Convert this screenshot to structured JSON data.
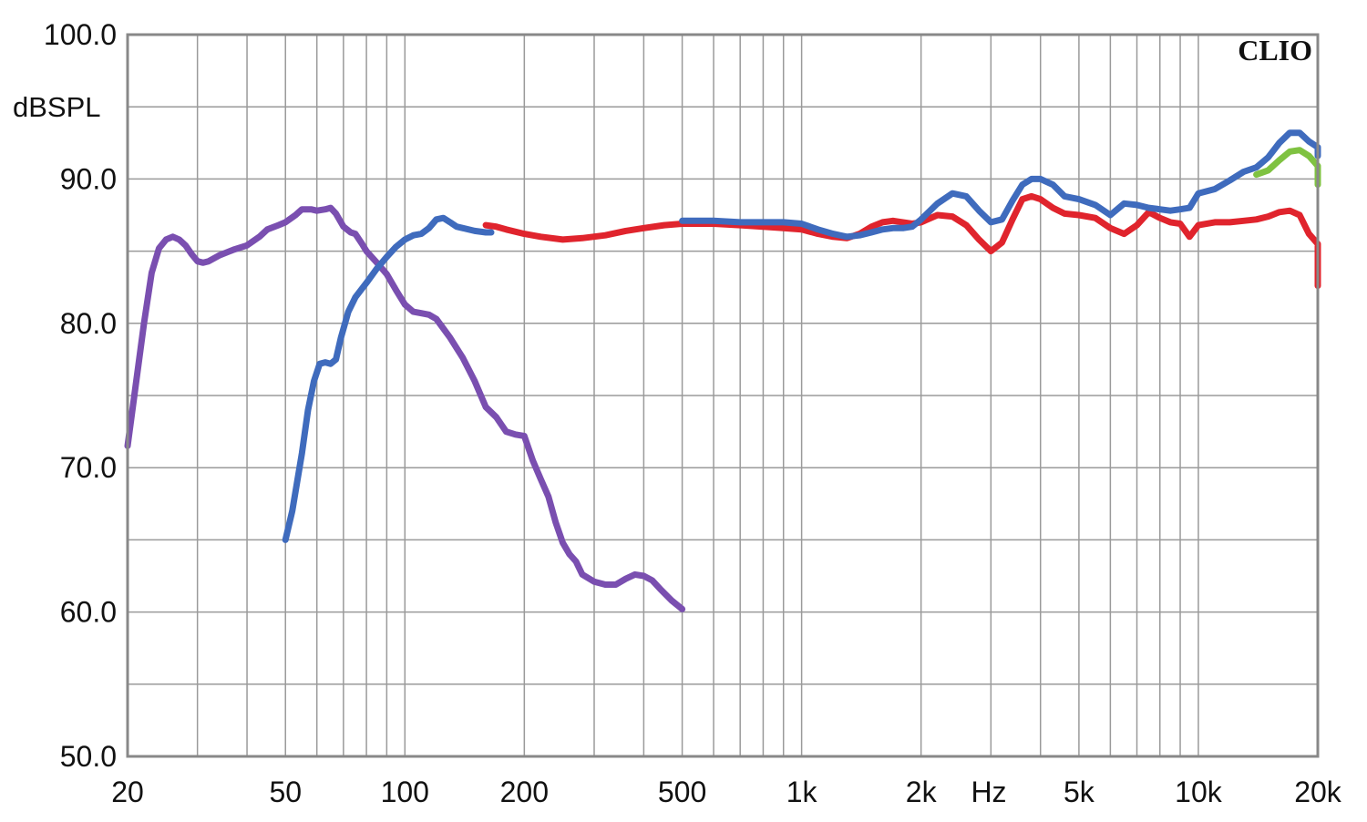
{
  "chart_data": {
    "type": "line",
    "brand": "CLIO",
    "ylabel": "dBSPL",
    "xlabel": "Hz",
    "x_scale": "log",
    "xlim": [
      20,
      20000
    ],
    "ylim": [
      50,
      100
    ],
    "grid": true,
    "y_ticks": [
      {
        "value": 100,
        "label": "100.0"
      },
      {
        "value": 90,
        "label": "90.0"
      },
      {
        "value": 80,
        "label": "80.0"
      },
      {
        "value": 70,
        "label": "70.0"
      },
      {
        "value": 60,
        "label": "60.0"
      },
      {
        "value": 50,
        "label": "50.0"
      }
    ],
    "x_ticks": [
      {
        "value": 20,
        "label": "20"
      },
      {
        "value": 50,
        "label": "50"
      },
      {
        "value": 100,
        "label": "100"
      },
      {
        "value": 200,
        "label": "200"
      },
      {
        "value": 500,
        "label": "500"
      },
      {
        "value": 1000,
        "label": "1k"
      },
      {
        "value": 2000,
        "label": "2k"
      },
      {
        "value": 5000,
        "label": "5k"
      },
      {
        "value": 10000,
        "label": "10k"
      },
      {
        "value": 20000,
        "label": "20k"
      }
    ],
    "series": [
      {
        "color": "#7a4fb0",
        "points": [
          [
            20,
            71.5
          ],
          [
            22,
            80
          ],
          [
            23,
            83.5
          ],
          [
            24,
            85.2
          ],
          [
            25,
            85.8
          ],
          [
            26,
            86
          ],
          [
            27,
            85.8
          ],
          [
            28,
            85.4
          ],
          [
            29,
            84.8
          ],
          [
            30,
            84.3
          ],
          [
            31,
            84.2
          ],
          [
            32,
            84.3
          ],
          [
            34,
            84.7
          ],
          [
            37,
            85.1
          ],
          [
            40,
            85.4
          ],
          [
            43,
            86
          ],
          [
            45,
            86.5
          ],
          [
            48,
            86.8
          ],
          [
            50,
            87
          ],
          [
            53,
            87.5
          ],
          [
            55,
            87.9
          ],
          [
            58,
            87.9
          ],
          [
            60,
            87.8
          ],
          [
            63,
            87.9
          ],
          [
            65,
            88
          ],
          [
            67,
            87.6
          ],
          [
            70,
            86.7
          ],
          [
            73,
            86.3
          ],
          [
            75,
            86.2
          ],
          [
            78,
            85.5
          ],
          [
            80,
            85
          ],
          [
            85,
            84.2
          ],
          [
            90,
            83.4
          ],
          [
            95,
            82.3
          ],
          [
            100,
            81.3
          ],
          [
            105,
            80.8
          ],
          [
            110,
            80.7
          ],
          [
            115,
            80.6
          ],
          [
            120,
            80.3
          ],
          [
            130,
            79
          ],
          [
            140,
            77.6
          ],
          [
            150,
            76
          ],
          [
            160,
            74.2
          ],
          [
            170,
            73.5
          ],
          [
            180,
            72.5
          ],
          [
            190,
            72.3
          ],
          [
            200,
            72.2
          ],
          [
            210,
            70.5
          ],
          [
            220,
            69.2
          ],
          [
            230,
            68
          ],
          [
            240,
            66.2
          ],
          [
            250,
            64.8
          ],
          [
            260,
            64
          ],
          [
            270,
            63.5
          ],
          [
            280,
            62.6
          ],
          [
            300,
            62.1
          ],
          [
            320,
            61.9
          ],
          [
            340,
            61.9
          ],
          [
            360,
            62.3
          ],
          [
            380,
            62.6
          ],
          [
            400,
            62.5
          ],
          [
            420,
            62.2
          ],
          [
            440,
            61.6
          ],
          [
            470,
            60.8
          ],
          [
            500,
            60.2
          ]
        ]
      },
      {
        "color": "#3f6bbd",
        "points": [
          [
            50,
            65
          ],
          [
            52,
            67
          ],
          [
            55,
            71
          ],
          [
            57,
            74
          ],
          [
            59,
            76
          ],
          [
            61,
            77.2
          ],
          [
            63,
            77.3
          ],
          [
            65,
            77.2
          ],
          [
            67,
            77.5
          ],
          [
            69,
            79
          ],
          [
            72,
            80.8
          ],
          [
            75,
            81.8
          ],
          [
            80,
            82.8
          ],
          [
            85,
            83.8
          ],
          [
            90,
            84.6
          ],
          [
            95,
            85.3
          ],
          [
            100,
            85.8
          ],
          [
            105,
            86.1
          ],
          [
            110,
            86.2
          ],
          [
            115,
            86.6
          ],
          [
            120,
            87.2
          ],
          [
            125,
            87.3
          ],
          [
            130,
            87
          ],
          [
            135,
            86.7
          ],
          [
            140,
            86.6
          ],
          [
            150,
            86.4
          ],
          [
            160,
            86.3
          ],
          [
            165,
            86.3
          ]
        ]
      },
      {
        "color": "#e0242d",
        "points": [
          [
            160,
            86.8
          ],
          [
            170,
            86.7
          ],
          [
            180,
            86.5
          ],
          [
            200,
            86.2
          ],
          [
            220,
            86.0
          ],
          [
            250,
            85.8
          ],
          [
            280,
            85.9
          ],
          [
            320,
            86.1
          ],
          [
            360,
            86.4
          ],
          [
            400,
            86.6
          ],
          [
            450,
            86.8
          ],
          [
            500,
            86.9
          ],
          [
            600,
            86.9
          ],
          [
            700,
            86.8
          ],
          [
            800,
            86.7
          ],
          [
            900,
            86.6
          ],
          [
            1000,
            86.5
          ],
          [
            1100,
            86.2
          ],
          [
            1200,
            86.0
          ],
          [
            1300,
            85.9
          ],
          [
            1400,
            86.2
          ],
          [
            1500,
            86.7
          ],
          [
            1600,
            87.0
          ],
          [
            1700,
            87.1
          ],
          [
            1800,
            87.0
          ],
          [
            1900,
            86.9
          ],
          [
            2000,
            87.0
          ],
          [
            2200,
            87.5
          ],
          [
            2400,
            87.4
          ],
          [
            2600,
            86.8
          ],
          [
            2800,
            85.8
          ],
          [
            3000,
            85.0
          ],
          [
            3200,
            85.6
          ],
          [
            3400,
            87.2
          ],
          [
            3600,
            88.6
          ],
          [
            3800,
            88.8
          ],
          [
            4000,
            88.6
          ],
          [
            4300,
            88.0
          ],
          [
            4600,
            87.6
          ],
          [
            5000,
            87.5
          ],
          [
            5500,
            87.3
          ],
          [
            6000,
            86.6
          ],
          [
            6500,
            86.2
          ],
          [
            7000,
            86.8
          ],
          [
            7500,
            87.7
          ],
          [
            8000,
            87.3
          ],
          [
            8500,
            87.0
          ],
          [
            9000,
            86.9
          ],
          [
            9500,
            86.0
          ],
          [
            10000,
            86.8
          ],
          [
            11000,
            87.0
          ],
          [
            12000,
            87.0
          ],
          [
            13000,
            87.1
          ],
          [
            14000,
            87.2
          ],
          [
            15000,
            87.4
          ],
          [
            16000,
            87.7
          ],
          [
            17000,
            87.8
          ],
          [
            18000,
            87.5
          ],
          [
            19000,
            86.2
          ],
          [
            20000,
            85.5
          ],
          [
            21500,
            82.6
          ]
        ]
      },
      {
        "color": "#7fc241",
        "points": [
          [
            14000,
            90.3
          ],
          [
            15000,
            90.6
          ],
          [
            16000,
            91.3
          ],
          [
            17000,
            91.9
          ],
          [
            18000,
            92.0
          ],
          [
            19000,
            91.6
          ],
          [
            20000,
            90.9
          ],
          [
            21500,
            89.6
          ]
        ]
      },
      {
        "color": "#3f6bbd",
        "points": [
          [
            500,
            87.1
          ],
          [
            600,
            87.1
          ],
          [
            700,
            87.0
          ],
          [
            800,
            87.0
          ],
          [
            900,
            87.0
          ],
          [
            1000,
            86.9
          ],
          [
            1100,
            86.5
          ],
          [
            1200,
            86.2
          ],
          [
            1300,
            86.0
          ],
          [
            1400,
            86.1
          ],
          [
            1500,
            86.3
          ],
          [
            1600,
            86.5
          ],
          [
            1700,
            86.6
          ],
          [
            1800,
            86.6
          ],
          [
            1900,
            86.7
          ],
          [
            2000,
            87.2
          ],
          [
            2200,
            88.3
          ],
          [
            2400,
            89.0
          ],
          [
            2600,
            88.8
          ],
          [
            2800,
            87.8
          ],
          [
            3000,
            87.0
          ],
          [
            3200,
            87.2
          ],
          [
            3400,
            88.5
          ],
          [
            3600,
            89.6
          ],
          [
            3800,
            90.0
          ],
          [
            4000,
            90.0
          ],
          [
            4300,
            89.6
          ],
          [
            4600,
            88.8
          ],
          [
            5000,
            88.6
          ],
          [
            5500,
            88.2
          ],
          [
            6000,
            87.5
          ],
          [
            6500,
            88.3
          ],
          [
            7000,
            88.2
          ],
          [
            7500,
            88.0
          ],
          [
            8000,
            87.9
          ],
          [
            8500,
            87.8
          ],
          [
            9000,
            87.9
          ],
          [
            9500,
            88.0
          ],
          [
            10000,
            89.0
          ],
          [
            11000,
            89.3
          ],
          [
            12000,
            89.9
          ],
          [
            13000,
            90.5
          ],
          [
            14000,
            90.8
          ],
          [
            15000,
            91.5
          ],
          [
            16000,
            92.5
          ],
          [
            17000,
            93.2
          ],
          [
            18000,
            93.2
          ],
          [
            19000,
            92.6
          ],
          [
            20000,
            92.2
          ],
          [
            21500,
            91.6
          ]
        ]
      }
    ]
  }
}
